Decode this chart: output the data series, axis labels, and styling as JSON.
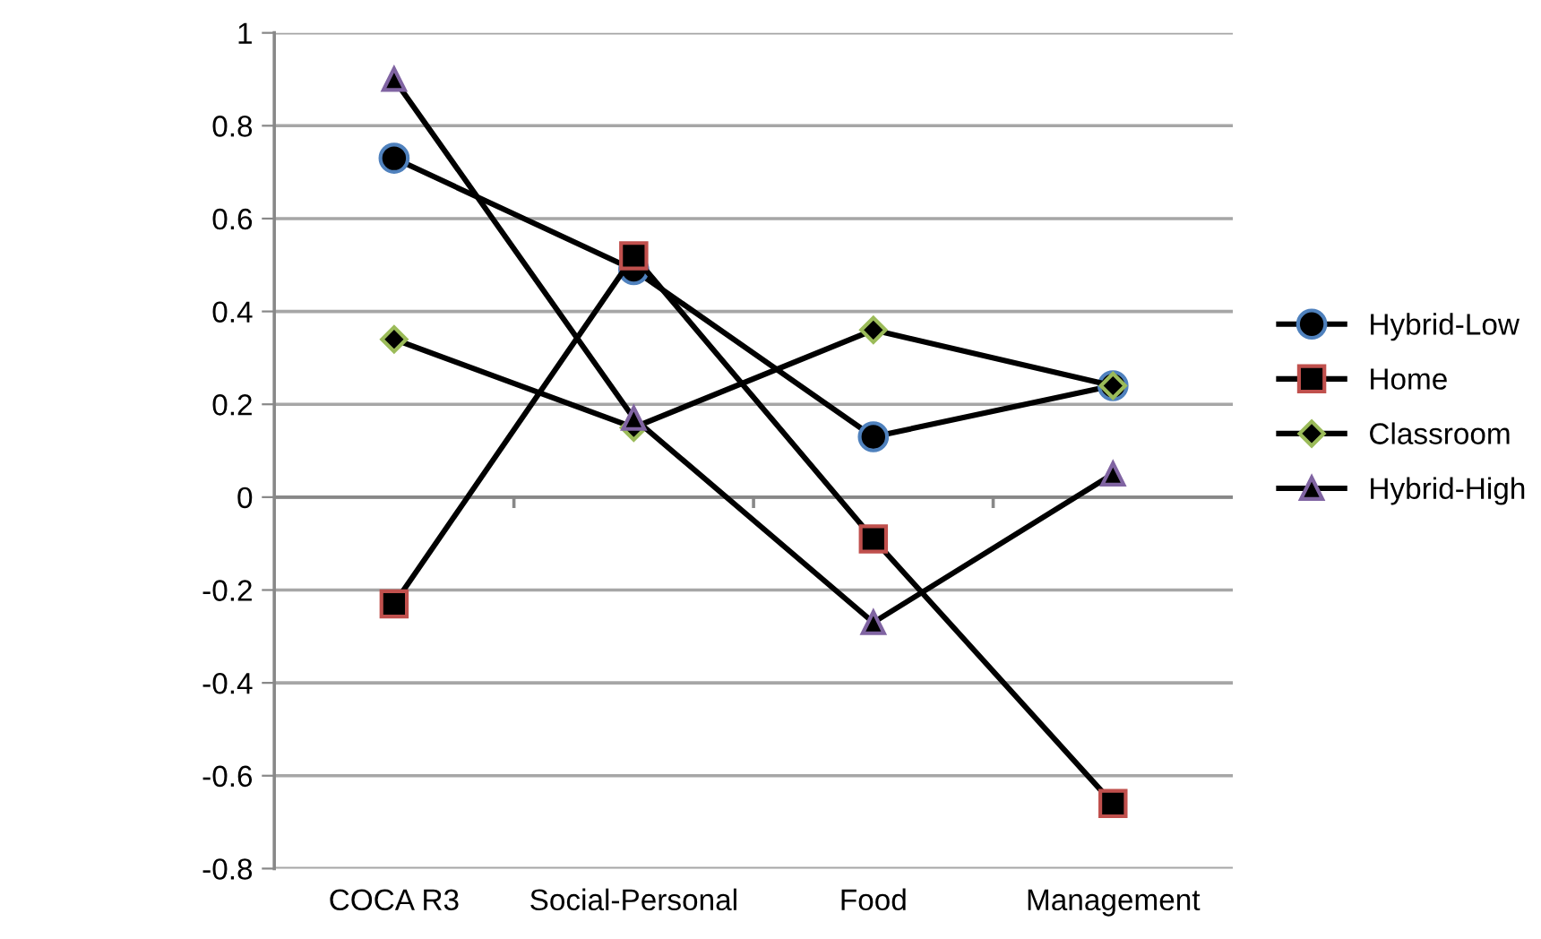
{
  "chart_data": {
    "type": "line",
    "categories": [
      "COCA R3",
      "Social-Personal",
      "Food",
      "Management"
    ],
    "series": [
      {
        "name": "Hybrid-Low",
        "color": "#4f81bd",
        "marker": "circle",
        "values": [
          0.73,
          0.49,
          0.13,
          0.24
        ]
      },
      {
        "name": "Home",
        "color": "#c0504d",
        "marker": "square",
        "values": [
          -0.23,
          0.52,
          -0.09,
          -0.66
        ]
      },
      {
        "name": "Classroom",
        "color": "#9bbb59",
        "marker": "diamond",
        "values": [
          0.34,
          0.15,
          0.36,
          0.24
        ]
      },
      {
        "name": "Hybrid-High",
        "color": "#8064a2",
        "marker": "triangle",
        "values": [
          0.9,
          0.17,
          -0.27,
          0.05
        ]
      }
    ],
    "ylim": [
      -0.8,
      1
    ],
    "yticks": [
      -0.8,
      -0.6,
      -0.4,
      -0.2,
      0,
      0.2,
      0.4,
      0.6,
      0.8,
      1
    ],
    "grid": "y",
    "legend": "right",
    "line_style": "solid"
  }
}
